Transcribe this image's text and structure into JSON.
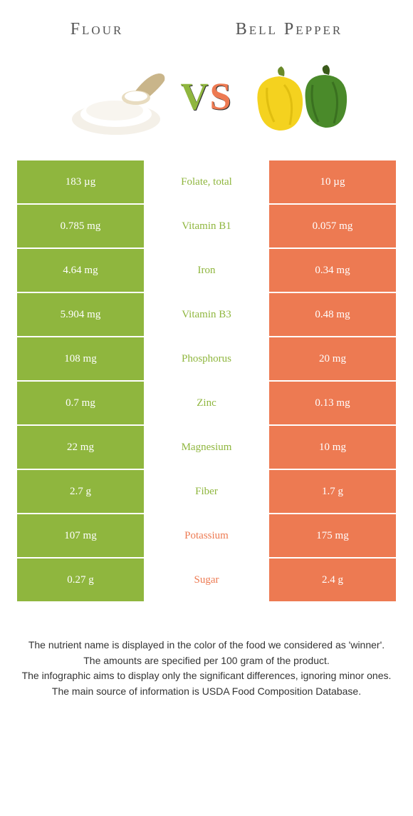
{
  "colors": {
    "left_food": "#8fb63e",
    "right_food": "#ed7a52",
    "mid_bg": "#ffffff",
    "text_light": "#ffffff",
    "title": "#555555"
  },
  "header": {
    "left_title": "Flour",
    "right_title": "Bell Pepper",
    "vs_v": "V",
    "vs_s": "S"
  },
  "rows": [
    {
      "left": "183 µg",
      "mid": "Folate, total",
      "right": "10 µg",
      "winner": "left"
    },
    {
      "left": "0.785 mg",
      "mid": "Vitamin B1",
      "right": "0.057 mg",
      "winner": "left"
    },
    {
      "left": "4.64 mg",
      "mid": "Iron",
      "right": "0.34 mg",
      "winner": "left"
    },
    {
      "left": "5.904 mg",
      "mid": "Vitamin B3",
      "right": "0.48 mg",
      "winner": "left"
    },
    {
      "left": "108 mg",
      "mid": "Phosphorus",
      "right": "20 mg",
      "winner": "left"
    },
    {
      "left": "0.7 mg",
      "mid": "Zinc",
      "right": "0.13 mg",
      "winner": "left"
    },
    {
      "left": "22 mg",
      "mid": "Magnesium",
      "right": "10 mg",
      "winner": "left"
    },
    {
      "left": "2.7 g",
      "mid": "Fiber",
      "right": "1.7 g",
      "winner": "left"
    },
    {
      "left": "107 mg",
      "mid": "Potassium",
      "right": "175 mg",
      "winner": "right"
    },
    {
      "left": "0.27 g",
      "mid": "Sugar",
      "right": "2.4 g",
      "winner": "right"
    }
  ],
  "footer": {
    "l1": "The nutrient name is displayed in the color of the food we considered as 'winner'.",
    "l2": "The amounts are specified per 100 gram of the product.",
    "l3": "The infographic aims to display only the significant differences, ignoring minor ones.",
    "l4": "The main source of information is USDA Food Composition Database."
  }
}
